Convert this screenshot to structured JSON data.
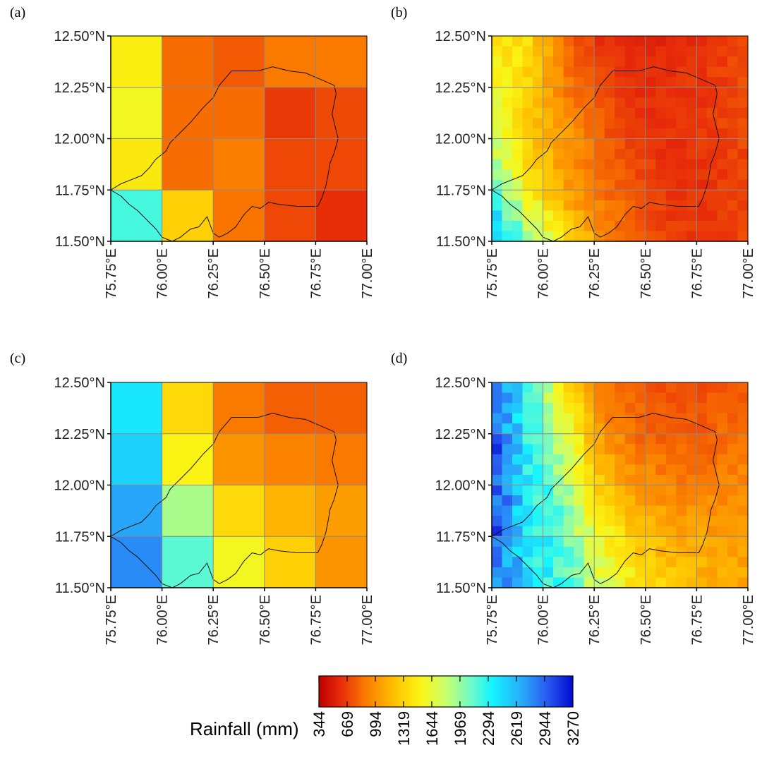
{
  "figure": {
    "panel_labels": [
      "(a)",
      "(b)",
      "(c)",
      "(d)"
    ],
    "colorbar_title": "Rainfall (mm)"
  },
  "chart_data": {
    "type": "heatmap",
    "title": "",
    "value_label": "Rainfall (mm)",
    "xlim": [
      75.75,
      77.0
    ],
    "ylim": [
      11.5,
      12.5
    ],
    "x_ticks": [
      "75.75°E",
      "76.00°E",
      "76.25°E",
      "76.50°E",
      "76.75°E",
      "77.00°E"
    ],
    "y_ticks": [
      "11.50°N",
      "11.75°N",
      "12.00°N",
      "12.25°N",
      "12.50°N"
    ],
    "colorbar_ticks": [
      344,
      669,
      994,
      1319,
      1644,
      1969,
      2294,
      2619,
      2944,
      3270
    ],
    "colorbar_range": [
      344,
      3270
    ],
    "grid": true,
    "panels": [
      {
        "label": "(a)",
        "resolution_deg": 0.25,
        "lon_centers": [
          75.875,
          76.125,
          76.375,
          76.625,
          76.875
        ],
        "lat_centers": [
          12.375,
          12.125,
          11.875,
          11.625
        ],
        "values": [
          [
            1480,
            830,
            760,
            880,
            880
          ],
          [
            1560,
            830,
            830,
            640,
            700
          ],
          [
            1440,
            830,
            900,
            690,
            690
          ],
          [
            2200,
            1300,
            860,
            690,
            600
          ]
        ]
      },
      {
        "label": "(b)",
        "resolution_deg": 0.05,
        "description_values": "fine-grid gradient field",
        "anchor_values": [
          [
            1450,
            1380,
            820,
            600,
            560,
            560,
            620,
            700
          ],
          [
            1550,
            1320,
            900,
            700,
            580,
            620,
            650,
            700
          ],
          [
            1750,
            1250,
            1020,
            780,
            650,
            600,
            640,
            690
          ],
          [
            2100,
            1500,
            1050,
            850,
            700,
            620,
            630,
            680
          ],
          [
            2800,
            2000,
            1400,
            980,
            760,
            660,
            640,
            700
          ]
        ]
      },
      {
        "label": "(c)",
        "resolution_deg": 0.25,
        "lon_centers": [
          75.875,
          76.125,
          76.375,
          76.625,
          76.875
        ],
        "lat_centers": [
          12.375,
          12.125,
          11.875,
          11.625
        ],
        "values": [
          [
            2400,
            1350,
            880,
            780,
            780
          ],
          [
            2500,
            1500,
            1000,
            920,
            880
          ],
          [
            2700,
            1900,
            1350,
            1150,
            1050
          ],
          [
            2800,
            2150,
            1550,
            1300,
            1000
          ]
        ]
      },
      {
        "label": "(d)",
        "resolution_deg": 0.05,
        "description_values": "fine-grid gradient field",
        "anchor_values": [
          [
            2800,
            2300,
            1400,
            900,
            760,
            700,
            720,
            780
          ],
          [
            3000,
            2300,
            1700,
            1000,
            820,
            760,
            780,
            850
          ],
          [
            3050,
            2400,
            1900,
            1250,
            1000,
            920,
            900,
            950
          ],
          [
            3000,
            2400,
            2100,
            1550,
            1250,
            1100,
            1050,
            1050
          ],
          [
            2900,
            2450,
            2200,
            1700,
            1450,
            1250,
            1150,
            1100
          ]
        ]
      }
    ],
    "boundary_outline": [
      [
        76.28,
        12.26
      ],
      [
        76.34,
        12.33
      ],
      [
        76.4,
        12.33
      ],
      [
        76.47,
        12.33
      ],
      [
        76.54,
        12.35
      ],
      [
        76.62,
        12.33
      ],
      [
        76.7,
        12.32
      ],
      [
        76.77,
        12.29
      ],
      [
        76.84,
        12.26
      ],
      [
        76.85,
        12.22
      ],
      [
        76.83,
        12.12
      ],
      [
        76.86,
        12.0
      ],
      [
        76.84,
        11.93
      ],
      [
        76.82,
        11.88
      ],
      [
        76.81,
        11.82
      ],
      [
        76.8,
        11.77
      ],
      [
        76.78,
        11.71
      ],
      [
        76.76,
        11.67
      ],
      [
        76.72,
        11.67
      ],
      [
        76.66,
        11.67
      ],
      [
        76.57,
        11.68
      ],
      [
        76.52,
        11.69
      ],
      [
        76.48,
        11.66
      ],
      [
        76.44,
        11.67
      ],
      [
        76.4,
        11.63
      ],
      [
        76.36,
        11.57
      ],
      [
        76.32,
        11.54
      ],
      [
        76.28,
        11.52
      ],
      [
        76.25,
        11.54
      ],
      [
        76.22,
        11.62
      ],
      [
        76.18,
        11.57
      ],
      [
        76.14,
        11.56
      ],
      [
        76.09,
        11.52
      ],
      [
        76.05,
        11.5
      ],
      [
        76.0,
        11.52
      ],
      [
        75.97,
        11.56
      ],
      [
        75.93,
        11.6
      ],
      [
        75.88,
        11.65
      ],
      [
        75.84,
        11.68
      ],
      [
        75.8,
        11.72
      ],
      [
        75.75,
        11.75
      ],
      [
        75.8,
        11.78
      ],
      [
        75.85,
        11.8
      ],
      [
        75.9,
        11.82
      ],
      [
        75.94,
        11.86
      ],
      [
        75.97,
        11.9
      ],
      [
        76.02,
        11.94
      ],
      [
        76.04,
        11.98
      ],
      [
        76.08,
        12.02
      ],
      [
        76.14,
        12.08
      ],
      [
        76.2,
        12.15
      ],
      [
        76.25,
        12.2
      ],
      [
        76.28,
        12.26
      ]
    ]
  }
}
